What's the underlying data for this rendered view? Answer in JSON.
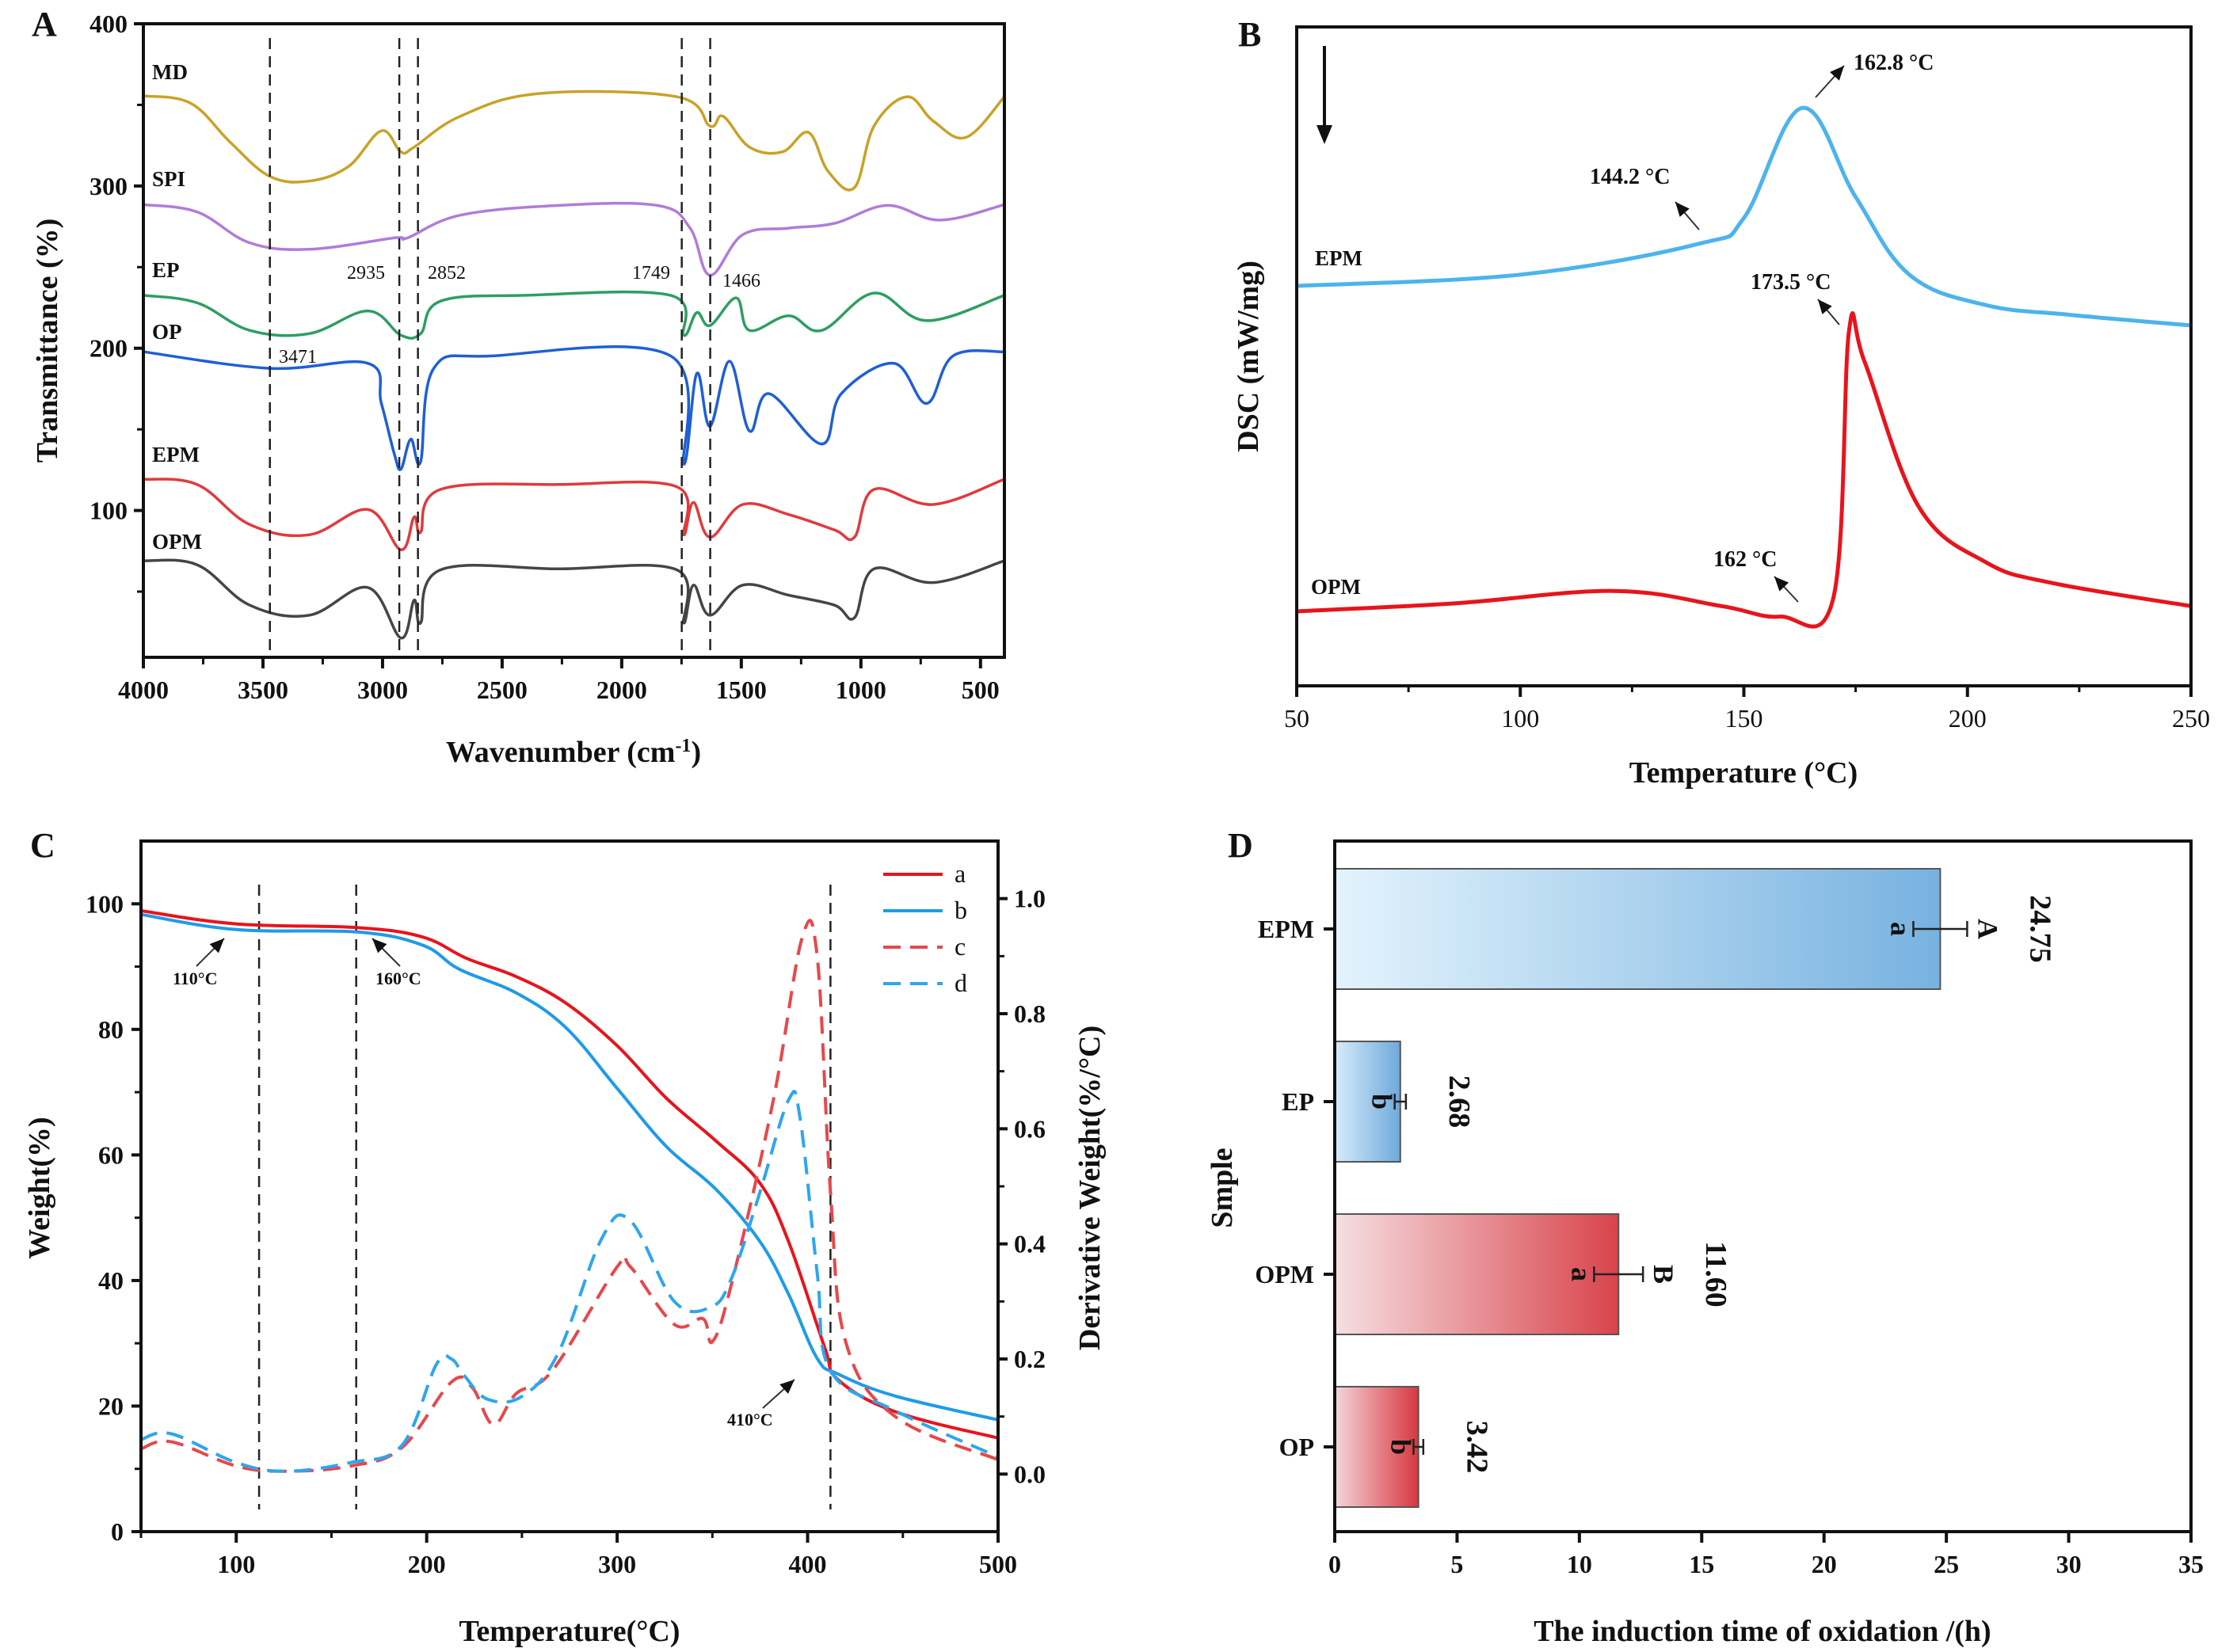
{
  "figure": {
    "panel_letters": [
      "A",
      "B",
      "C",
      "D"
    ]
  },
  "chart_data": [
    {
      "panel": "A",
      "type": "line",
      "title": "",
      "xlabel": "Wavenumber (cm-1)",
      "xlabel_main": "Wavenumber (cm",
      "xlabel_sup": "-1",
      "xlabel_close": ")",
      "ylabel": "Transmittance (%)",
      "xlim": [
        4000,
        400
      ],
      "ylim": [
        9.5,
        400
      ],
      "x_reversed": true,
      "x_ticks": [
        4000,
        3500,
        3000,
        2500,
        2000,
        1500,
        1000,
        500
      ],
      "y_ticks": [
        100,
        200,
        300,
        400
      ],
      "grid": false,
      "legend": "inline-left",
      "vertical_reference_lines": [
        3471,
        2930,
        2852,
        1749,
        1630
      ],
      "peak_annotations": [
        "2935",
        "2852",
        "1749",
        "1466",
        "3471"
      ],
      "series": [
        {
          "name": "MD",
          "color": "#c9a227",
          "x": [
            4000,
            3802,
            3637,
            3472,
            3307,
            3143,
            3005,
            2923,
            2868,
            2675,
            2346,
            1769,
            1631,
            1576,
            1466,
            1329,
            1219,
            1137,
            1027,
            945,
            807,
            697,
            560,
            400
          ],
          "y": [
            355.6,
            351,
            327,
            306,
            303,
            312,
            334,
            321,
            324,
            343,
            357,
            355,
            337,
            343,
            324,
            321,
            333,
            309,
            299,
            337,
            355,
            340,
            330,
            355
          ]
        },
        {
          "name": "SPI",
          "color": "#b07cd8",
          "x": [
            4000,
            3775,
            3555,
            3307,
            2951,
            2896,
            2675,
            2264,
            1851,
            1714,
            1631,
            1494,
            1302,
            1110,
            890,
            670,
            400
          ],
          "y": [
            288.5,
            284,
            265,
            261,
            268,
            268,
            282,
            288,
            288,
            274,
            245,
            270,
            274,
            277,
            288,
            279,
            288.5
          ]
        },
        {
          "name": "EP",
          "color": "#2e9e62",
          "x": [
            4000,
            3775,
            3555,
            3307,
            3061,
            2923,
            2841,
            2758,
            2400,
            1796,
            1741,
            1686,
            1631,
            1521,
            1466,
            1302,
            1164,
            945,
            725,
            400
          ],
          "y": [
            232.6,
            228,
            211,
            209,
            223,
            208,
            209,
            229,
            232.6,
            232.6,
            208,
            222,
            214,
            231,
            211,
            220,
            211,
            234,
            217,
            232.6
          ]
        },
        {
          "name": "OP",
          "color": "#1f5fd6",
          "x": [
            4000,
            3472,
            3061,
            3005,
            2951,
            2923,
            2882,
            2841,
            2786,
            2538,
            1796,
            1741,
            1686,
            1631,
            1549,
            1466,
            1384,
            1164,
            1082,
            862,
            725,
            615,
            400
          ],
          "y": [
            197.8,
            187.6,
            190.7,
            166,
            135,
            125.5,
            144,
            130,
            187.6,
            195.3,
            195.3,
            128.6,
            184.5,
            151.9,
            192,
            149,
            172,
            141,
            172,
            190.7,
            166,
            195.3,
            197.8
          ]
        },
        {
          "name": "EPM",
          "color": "#e03a3e",
          "x": [
            4000,
            3775,
            3555,
            3307,
            3061,
            2923,
            2868,
            2841,
            2758,
            2264,
            1769,
            1741,
            1700,
            1631,
            1494,
            1302,
            1110,
            1027,
            945,
            697,
            400
          ],
          "y": [
            119.3,
            116,
            91.3,
            85,
            100.6,
            75.8,
            96,
            86.6,
            113,
            116,
            114.6,
            85,
            105,
            83.5,
            103.7,
            97.5,
            88,
            83.5,
            113,
            103.7,
            119.3
          ]
        },
        {
          "name": "OPM",
          "color": "#454545",
          "x": [
            4000,
            3775,
            3555,
            3307,
            3061,
            2923,
            2868,
            2841,
            2758,
            2264,
            1769,
            1741,
            1700,
            1631,
            1494,
            1302,
            1110,
            1027,
            945,
            697,
            400
          ],
          "y": [
            69,
            66.5,
            41.6,
            35.4,
            52.5,
            21.4,
            44.7,
            30.7,
            63.4,
            64,
            63.4,
            30.7,
            54,
            35.4,
            54,
            47.8,
            41.6,
            33.9,
            64,
            55.6,
            69
          ]
        }
      ]
    },
    {
      "panel": "B",
      "type": "line",
      "title": "",
      "xlabel": "Temperature (°C)",
      "ylabel": "DSC (mW/mg)",
      "xlim": [
        50,
        250
      ],
      "ylim_arbitrary_units": [
        0,
        100
      ],
      "x_ticks": [
        50,
        100,
        150,
        200,
        250
      ],
      "y_ticks": [],
      "grid": false,
      "legend": "inline-left",
      "direction_arrow": "down",
      "series": [
        {
          "name": "EPM",
          "color": "#4db3ec",
          "x": [
            50,
            100,
            140,
            150,
            163,
            175,
            187,
            204,
            223,
            250
          ],
          "y": [
            60.7,
            62.4,
            67.1,
            71.0,
            87.7,
            74.2,
            62.4,
            57.8,
            56.3,
            54.7
          ]
        },
        {
          "name": "OPM",
          "color": "#e8141c",
          "x": [
            50,
            85,
            121,
            145,
            158,
            170,
            173.5,
            177,
            189,
            204,
            219,
            250
          ],
          "y": [
            11.3,
            12.5,
            14.4,
            12.1,
            10.5,
            13.3,
            53.8,
            49.2,
            27.3,
            18.8,
            15.6,
            12.1
          ]
        }
      ],
      "annotations": [
        "162.8 °C",
        "144.2 °C",
        "173.5 °C",
        "162 °C"
      ]
    },
    {
      "panel": "C",
      "type": "line",
      "title": "",
      "xlabel": "Temperature(°C)",
      "ylabel": "Weight(%)",
      "ylabel_right": "Derivative Weight(%/°C)",
      "xlim": [
        50,
        500
      ],
      "ylim": [
        0,
        110
      ],
      "ylim_right": [
        -0.1,
        1.1
      ],
      "x_ticks": [
        100,
        200,
        300,
        400,
        500
      ],
      "y_ticks": [
        0,
        20,
        40,
        60,
        80,
        100
      ],
      "y_ticks_right": [
        "0.0",
        "0.2",
        "0.4",
        "0.6",
        "0.8",
        "1.0"
      ],
      "grid": false,
      "legend": "top-right",
      "vertical_reference_lines": [
        112,
        163,
        412
      ],
      "annotations": [
        "110°C",
        "160°C",
        "410°C"
      ],
      "series": [
        {
          "name": "a",
          "axis": "left",
          "style": "solid",
          "color": "#e8141c",
          "x": [
            50,
            100,
            164,
            198,
            221,
            247,
            273,
            300,
            326,
            352,
            375,
            390,
            409,
            416,
            446,
            500
          ],
          "y": [
            98.9,
            96.8,
            96.2,
            94.7,
            91.3,
            88.4,
            84.2,
            77.4,
            69.0,
            62.2,
            55.5,
            46.2,
            29.3,
            24.2,
            19.1,
            14.9
          ]
        },
        {
          "name": "b",
          "axis": "left",
          "style": "solid",
          "color": "#1e9be8",
          "x": [
            50,
            100,
            164,
            198,
            217,
            247,
            273,
            300,
            326,
            352,
            375,
            390,
            405,
            416,
            446,
            500
          ],
          "y": [
            98.3,
            95.9,
            95.5,
            93.4,
            89.6,
            85.8,
            80.3,
            70.6,
            61.3,
            54.5,
            46.2,
            37.8,
            27.6,
            25.1,
            21.6,
            17.8
          ]
        },
        {
          "name": "c",
          "axis": "right",
          "style": "dashed",
          "color": "#e8474b",
          "x": [
            50,
            66,
            100,
            126,
            160,
            187,
            213,
            224,
            235,
            247,
            266,
            300,
            307,
            330,
            345,
            350,
            360,
            382,
            397,
            405,
            412,
            420,
            446,
            500
          ],
          "y": [
            0.044,
            0.056,
            0.014,
            0.005,
            0.014,
            0.046,
            0.16,
            0.15,
            0.086,
            0.14,
            0.18,
            0.36,
            0.36,
            0.26,
            0.27,
            0.23,
            0.33,
            0.65,
            0.93,
            0.9,
            0.49,
            0.23,
            0.1,
            0.025
          ]
        },
        {
          "name": "d",
          "axis": "right",
          "style": "dashed",
          "color": "#2ea6ee",
          "x": [
            50,
            66,
            100,
            126,
            160,
            187,
            205,
            213,
            220,
            232,
            250,
            269,
            292,
            307,
            330,
            349,
            360,
            375,
            390,
            396,
            405,
            412,
            446,
            500
          ],
          "y": [
            0.06,
            0.07,
            0.02,
            0.005,
            0.02,
            0.05,
            0.19,
            0.2,
            0.17,
            0.13,
            0.135,
            0.21,
            0.41,
            0.44,
            0.3,
            0.29,
            0.34,
            0.49,
            0.65,
            0.62,
            0.35,
            0.18,
            0.11,
            0.03
          ]
        }
      ]
    },
    {
      "panel": "D",
      "type": "bar",
      "orientation": "horizontal",
      "title": "",
      "xlabel": "The induction time of oxidation /(h)",
      "ylabel": "Smple",
      "xlim": [
        0,
        35
      ],
      "x_ticks": [
        0,
        5,
        10,
        15,
        20,
        25,
        30,
        35
      ],
      "grid": false,
      "legend": "none",
      "categories": [
        "EPM",
        "EP",
        "OPM",
        "OP"
      ],
      "values": [
        24.75,
        2.68,
        11.6,
        3.42
      ],
      "value_labels": [
        "24.75",
        "2.68",
        "11.60",
        "3.42"
      ],
      "errors": [
        1.1,
        0.23,
        1.0,
        0.2
      ],
      "inner_letters": [
        "a",
        "b",
        "a",
        "b"
      ],
      "outer_letters": [
        "A",
        "",
        "B",
        ""
      ],
      "gradient_colors": [
        {
          "from": "#e3f3fd",
          "to": "#77b2e0"
        },
        {
          "from": "#d7ecfb",
          "to": "#6ea9db"
        },
        {
          "from": "#f6dfe2",
          "to": "#d9434b"
        },
        {
          "from": "#f3d6da",
          "to": "#d8373f"
        }
      ]
    }
  ]
}
